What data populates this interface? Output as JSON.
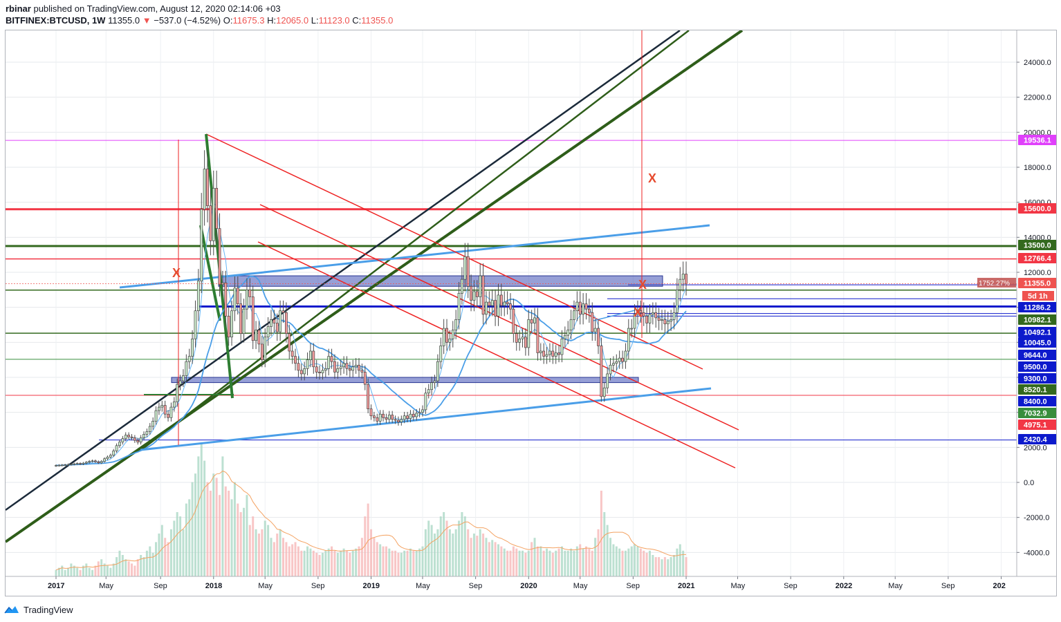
{
  "header": {
    "publisher": "rbinar",
    "published_text": "published on TradingView.com, August 12, 2020 02:14:06 +03",
    "symbol": "BITFINEX:BTCUSD, 1W",
    "last": "11355.0",
    "change_arrow": "▼",
    "change": "−537.0 (−4.52%)",
    "o_label": "O:",
    "o_value": "11675.3",
    "h_label": "H:",
    "h_value": "12065.0",
    "l_label": "L:",
    "l_value": "11123.0",
    "c_label": "C:",
    "c_value": "11355.0"
  },
  "footer": {
    "brand": "TradingView",
    "logo_icon": "tradingview-logo-icon"
  },
  "chart_data": {
    "type": "candlestick",
    "y_ticks": [
      24000,
      22000,
      20000,
      18000,
      16000,
      14000,
      12000,
      10000,
      8000,
      6000,
      4000,
      2000,
      0,
      -2000,
      -4000
    ],
    "y_tick_labels": [
      "24000.0",
      "22000.0",
      "20000.0",
      "18000.0",
      "16000.0",
      "14000.0",
      "12000.0",
      "10000.0",
      "8000.0",
      "6000.0",
      "4000.0",
      "2000.0",
      "0.0",
      "-2000.0",
      "-4000.0"
    ],
    "ylim": [
      -5500,
      25800
    ],
    "x_ticks": [
      "2017",
      "May",
      "Sep",
      "2018",
      "May",
      "Sep",
      "2019",
      "May",
      "Sep",
      "2020",
      "May",
      "Sep",
      "2021",
      "May",
      "Sep",
      "2022",
      "May",
      "Sep",
      "202"
    ],
    "x_tick_index": [
      0,
      16.5,
      34.5,
      52,
      69,
      86.5,
      104,
      121,
      138.5,
      156,
      173,
      190.5,
      208,
      225,
      242.5,
      260,
      277,
      294.5,
      312
    ],
    "price_labels": [
      {
        "value": 19536.1,
        "text": "19536.1",
        "bg": "#e040fb"
      },
      {
        "value": 15600.0,
        "text": "15600.0",
        "bg": "#f23645"
      },
      {
        "value": 13500.0,
        "text": "13500.0",
        "bg": "#33691e"
      },
      {
        "value": 12766.4,
        "text": "12766.4",
        "bg": "#f23645"
      },
      {
        "value": 11355.0,
        "text": "11355.0",
        "bg": "#ef5350"
      },
      {
        "value": 11286.2,
        "text": "11286.2",
        "bg": "#0d1acc"
      },
      {
        "value": 10982.1,
        "text": "10982.1",
        "bg": "#33691e"
      },
      {
        "value": 10492.1,
        "text": "10492.1",
        "bg": "#0d1acc"
      },
      {
        "value": 10045.0,
        "text": "10045.0",
        "bg": "#0d1acc"
      },
      {
        "value": 9644.0,
        "text": "9644.0",
        "bg": "#0d1acc"
      },
      {
        "value": 9500.0,
        "text": "9500.0",
        "bg": "#0d1acc"
      },
      {
        "value": 9300.0,
        "text": "9300.0",
        "bg": "#0d1acc"
      },
      {
        "value": 8520.1,
        "text": "8520.1",
        "bg": "#33691e"
      },
      {
        "value": 8400.0,
        "text": "8400.0",
        "bg": "#0d1acc"
      },
      {
        "value": 7032.9,
        "text": "7032.9",
        "bg": "#388e3c"
      },
      {
        "value": 4975.1,
        "text": "4975.1",
        "bg": "#f23645"
      },
      {
        "value": 2420.4,
        "text": "2420.4",
        "bg": "#0d1acc"
      }
    ],
    "countdown_label": "5d 1h",
    "range_label": "1752.27%",
    "annotations": [
      "X",
      "X",
      "X",
      "X"
    ],
    "weekly_close": [
      970,
      980,
      990,
      1000,
      1020,
      1040,
      1060,
      1080,
      1050,
      1100,
      1150,
      1200,
      1230,
      1180,
      1120,
      1200,
      1350,
      1450,
      1550,
      1800,
      2100,
      2300,
      2500,
      2700,
      2600,
      2550,
      2400,
      2300,
      2550,
      2750,
      2900,
      3200,
      3500,
      4100,
      4300,
      4400,
      3900,
      3700,
      4300,
      4600,
      5600,
      5800,
      6100,
      6900,
      7200,
      8200,
      9800,
      11500,
      15600,
      17900,
      15800,
      13800,
      16800,
      14500,
      11300,
      11400,
      9500,
      8300,
      9800,
      11100,
      10200,
      8500,
      9900,
      11000,
      10600,
      8100,
      8700,
      7900,
      7000,
      8300,
      8900,
      9300,
      9100,
      8600,
      9800,
      9700,
      8500,
      7500,
      7200,
      6800,
      6400,
      6200,
      6500,
      7000,
      7500,
      6600,
      6300,
      6250,
      6400,
      6500,
      7200,
      6900,
      6300,
      6500,
      6600,
      6800,
      6500,
      6400,
      6600,
      6700,
      6400,
      6300,
      5600,
      4200,
      3800,
      3700,
      3500,
      3900,
      3700,
      3600,
      3850,
      3600,
      3550,
      3450,
      3600,
      3800,
      3650,
      3900,
      3750,
      3950,
      4000,
      4150,
      5100,
      5300,
      5700,
      5800,
      6900,
      7800,
      8800,
      8000,
      8200,
      8700,
      9300,
      10800,
      11600,
      12900,
      11200,
      10400,
      10900,
      10600,
      11800,
      9600,
      10300,
      10100,
      10400,
      9500,
      10700,
      10100,
      10300,
      10200,
      9900,
      8500,
      8000,
      8200,
      8300,
      7700,
      9300,
      9100,
      9400,
      7400,
      7500,
      7200,
      7300,
      7500,
      7200,
      7400,
      7300,
      8200,
      8400,
      8700,
      9300,
      9800,
      10300,
      9600,
      10200,
      9900,
      9700,
      8600,
      8800,
      7800,
      4900,
      5400,
      6200,
      6700,
      6800,
      6900,
      7100,
      6900,
      7500,
      8800,
      8800,
      9600,
      9800,
      9700,
      9500,
      9100,
      9600,
      9700,
      9400,
      9250,
      9300,
      9050,
      9200,
      9300,
      9700,
      11000,
      11600,
      11900,
      11355
    ],
    "volume": [
      3,
      4,
      5,
      3,
      4,
      6,
      5,
      4,
      3,
      5,
      6,
      4,
      3,
      5,
      7,
      8,
      6,
      5,
      4,
      6,
      9,
      12,
      10,
      8,
      7,
      6,
      5,
      8,
      10,
      9,
      12,
      14,
      11,
      16,
      20,
      24,
      18,
      16,
      22,
      26,
      30,
      28,
      22,
      34,
      36,
      44,
      48,
      56,
      62,
      54,
      44,
      40,
      48,
      46,
      38,
      56,
      42,
      40,
      36,
      44,
      34,
      30,
      32,
      38,
      24,
      28,
      22,
      20,
      22,
      26,
      24,
      18,
      16,
      20,
      22,
      18,
      16,
      14,
      15,
      16,
      14,
      12,
      12,
      14,
      13,
      12,
      11,
      10,
      11,
      12,
      13,
      14,
      12,
      11,
      12,
      13,
      12,
      11,
      12,
      13,
      14,
      18,
      28,
      34,
      22,
      18,
      16,
      15,
      14,
      14,
      13,
      12,
      12,
      11,
      11,
      12,
      12,
      13,
      12,
      12,
      13,
      14,
      22,
      26,
      24,
      20,
      22,
      28,
      30,
      26,
      22,
      20,
      22,
      26,
      30,
      28,
      22,
      18,
      20,
      19,
      22,
      20,
      18,
      16,
      17,
      16,
      15,
      14,
      13,
      12,
      12,
      14,
      13,
      12,
      12,
      11,
      12,
      16,
      18,
      14,
      14,
      12,
      13,
      12,
      11,
      12,
      13,
      14,
      12,
      12,
      13,
      12,
      14,
      15,
      13,
      14,
      13,
      12,
      18,
      22,
      40,
      30,
      24,
      18,
      15,
      14,
      13,
      12,
      12,
      13,
      14,
      15,
      14,
      13,
      12,
      11,
      12,
      10,
      9,
      9,
      8,
      9,
      8,
      9,
      10,
      13,
      15,
      12,
      9
    ]
  }
}
